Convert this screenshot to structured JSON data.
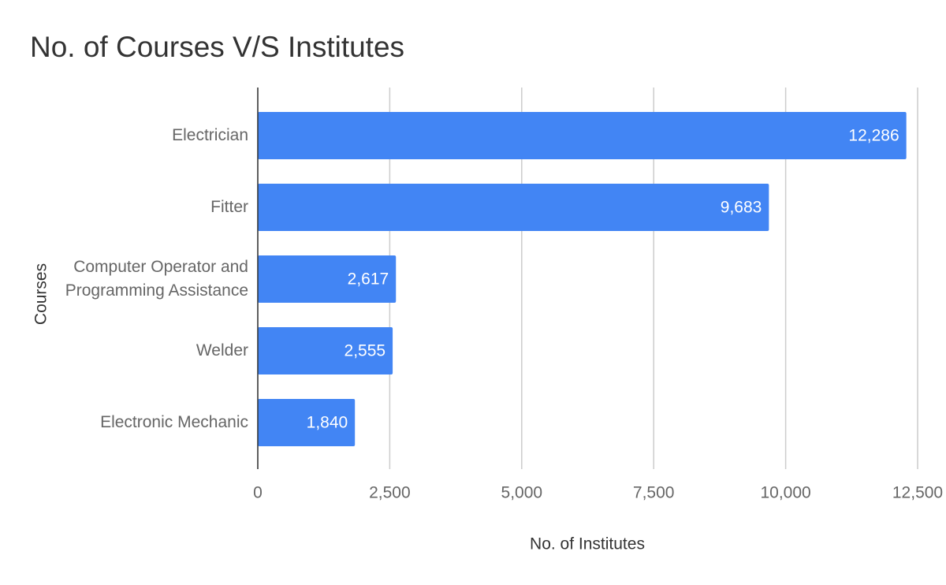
{
  "chart_data": {
    "type": "bar",
    "orientation": "horizontal",
    "title": "No. of Courses V/S Institutes",
    "x_label": "No. of Institutes",
    "y_label": "Courses",
    "categories": [
      "Electrician",
      "Fitter",
      "Computer Operator and Programming Assistance",
      "Welder",
      "Electronic Mechanic"
    ],
    "values": [
      12286,
      9683,
      2617,
      2555,
      1840
    ],
    "value_labels": [
      "12,286",
      "9,683",
      "2,617",
      "2,555",
      "1,840"
    ],
    "color": "#4285f4",
    "xlim": [
      0,
      12500
    ],
    "xticks": [
      0,
      {
        "value": 2500,
        "label": "2,500"
      },
      {
        "value": 5000,
        "label": "5,000"
      },
      {
        "value": 7500,
        "label": "7,500"
      },
      {
        "value": 10000,
        "label": "10,000"
      },
      {
        "value": 12500,
        "label": "12,500"
      }
    ],
    "grid": true
  }
}
